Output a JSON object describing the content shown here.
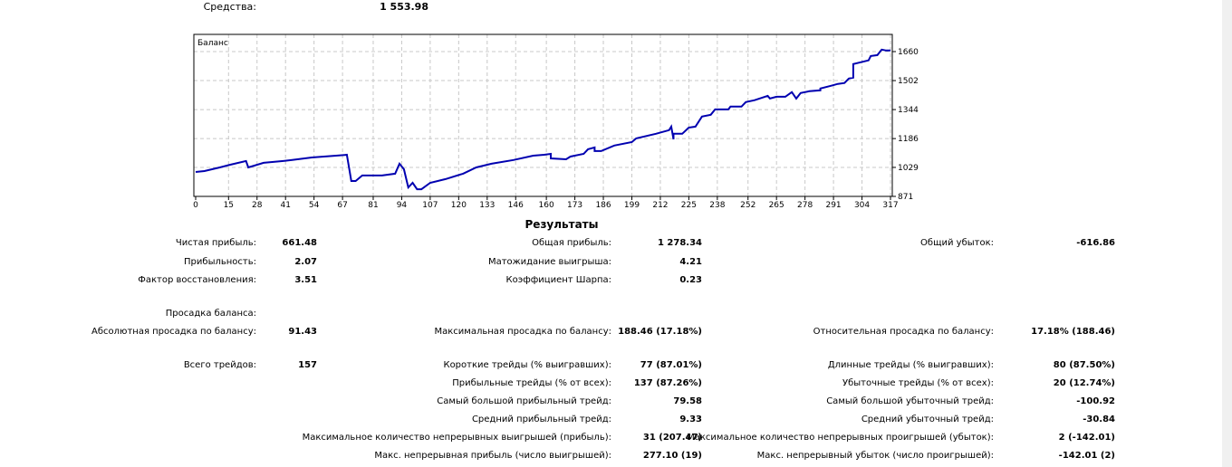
{
  "equity": {
    "label": "Средства:",
    "value": "1 553.98"
  },
  "chart_data": {
    "type": "line",
    "title": "Баланс",
    "series": [
      {
        "color": "#0000b0",
        "points": [
          [
            0,
            1004
          ],
          [
            4,
            1009
          ],
          [
            11,
            1029
          ],
          [
            16,
            1044
          ],
          [
            23,
            1064
          ],
          [
            24,
            1029
          ],
          [
            31,
            1054
          ],
          [
            40,
            1064
          ],
          [
            44,
            1069
          ],
          [
            53,
            1083
          ],
          [
            64,
            1093
          ],
          [
            69,
            1098
          ],
          [
            71,
            955
          ],
          [
            73,
            955
          ],
          [
            76,
            985
          ],
          [
            85,
            985
          ],
          [
            91,
            995
          ],
          [
            93,
            1049
          ],
          [
            95,
            1019
          ],
          [
            97,
            920
          ],
          [
            99,
            945
          ],
          [
            101,
            910
          ],
          [
            103,
            910
          ],
          [
            107,
            945
          ],
          [
            114,
            965
          ],
          [
            122,
            995
          ],
          [
            128,
            1029
          ],
          [
            135,
            1049
          ],
          [
            145,
            1069
          ],
          [
            154,
            1093
          ],
          [
            159,
            1098
          ],
          [
            162,
            1103
          ],
          [
            162,
            1078
          ],
          [
            169,
            1073
          ],
          [
            171,
            1088
          ],
          [
            177,
            1103
          ],
          [
            179,
            1128
          ],
          [
            182,
            1138
          ],
          [
            182,
            1118
          ],
          [
            185,
            1118
          ],
          [
            191,
            1148
          ],
          [
            199,
            1167
          ],
          [
            201,
            1187
          ],
          [
            210,
            1212
          ],
          [
            216,
            1232
          ],
          [
            217,
            1251
          ],
          [
            218,
            1182
          ],
          [
            218,
            1212
          ],
          [
            222,
            1212
          ],
          [
            225,
            1246
          ],
          [
            228,
            1251
          ],
          [
            231,
            1306
          ],
          [
            235,
            1316
          ],
          [
            237,
            1345
          ],
          [
            243,
            1345
          ],
          [
            244,
            1360
          ],
          [
            249,
            1360
          ],
          [
            251,
            1385
          ],
          [
            255,
            1395
          ],
          [
            261,
            1419
          ],
          [
            262,
            1404
          ],
          [
            265,
            1414
          ],
          [
            269,
            1414
          ],
          [
            272,
            1439
          ],
          [
            274,
            1404
          ],
          [
            276,
            1434
          ],
          [
            280,
            1444
          ],
          [
            285,
            1449
          ],
          [
            285,
            1459
          ],
          [
            290,
            1474
          ],
          [
            293,
            1484
          ],
          [
            296,
            1489
          ],
          [
            298,
            1513
          ],
          [
            300,
            1518
          ],
          [
            300,
            1592
          ],
          [
            307,
            1612
          ],
          [
            308,
            1636
          ],
          [
            311,
            1641
          ],
          [
            313,
            1671
          ],
          [
            315,
            1666
          ],
          [
            317,
            1666
          ]
        ]
      }
    ],
    "x_ticks": [
      "0",
      "15",
      "28",
      "41",
      "54",
      "67",
      "81",
      "94",
      "107",
      "120",
      "133",
      "146",
      "160",
      "173",
      "186",
      "199",
      "212",
      "225",
      "238",
      "252",
      "265",
      "278",
      "291",
      "304",
      "317"
    ],
    "y_ticks": [
      "1660",
      "1502",
      "1344",
      "1186",
      "1029",
      "871"
    ],
    "xlim": [
      0,
      317
    ],
    "ylim": [
      871,
      1660
    ],
    "grid": true,
    "y_axis_side": "right"
  },
  "results": {
    "title": "Результаты",
    "rows": [
      [
        [
          "Чистая прибыль:",
          "661.48"
        ],
        [
          "Общая прибыль:",
          "1 278.34"
        ],
        [
          "Общий убыток:",
          "-616.86"
        ]
      ],
      [
        [
          "Прибыльность:",
          "2.07"
        ],
        [
          "Матожидание выигрыша:",
          "4.21"
        ],
        null
      ],
      [
        [
          "Фактор восстановления:",
          "3.51"
        ],
        [
          "Коэффициент Шарпа:",
          "0.23"
        ],
        null
      ],
      [
        [
          "Просадка баланса:",
          ""
        ],
        null,
        null
      ],
      [
        [
          "Абсолютная просадка по балансу:",
          "91.43"
        ],
        [
          "Максимальная просадка по балансу:",
          "188.46 (17.18%)"
        ],
        [
          "Относительная просадка по балансу:",
          "17.18% (188.46)"
        ]
      ],
      [
        [
          "Всего трейдов:",
          "157"
        ],
        [
          "Короткие трейды (% выигравших):",
          "77 (87.01%)"
        ],
        [
          "Длинные трейды (% выигравших):",
          "80 (87.50%)"
        ]
      ],
      [
        null,
        [
          "Прибыльные трейды (% от всех):",
          "137 (87.26%)"
        ],
        [
          "Убыточные трейды (% от всех):",
          "20 (12.74%)"
        ]
      ],
      [
        null,
        [
          "Самый большой прибыльный трейд:",
          "79.58"
        ],
        [
          "Самый большой убыточный трейд:",
          "-100.92"
        ]
      ],
      [
        null,
        [
          "Средний прибыльный трейд:",
          "9.33"
        ],
        [
          "Средний убыточный трейд:",
          "-30.84"
        ]
      ],
      [
        null,
        [
          "Максимальное количество непрерывных выигрышей (прибыль):",
          "31 (207.47)"
        ],
        [
          "Максимальное количество непрерывных проигрышей (убыток):",
          "2 (-142.01)"
        ]
      ],
      [
        null,
        [
          "Макс. непрерывная прибыль (число выигрышей):",
          "277.10 (19)"
        ],
        [
          "Макс. непрерывный убыток (число проигрышей):",
          "-142.01 (2)"
        ]
      ]
    ]
  }
}
